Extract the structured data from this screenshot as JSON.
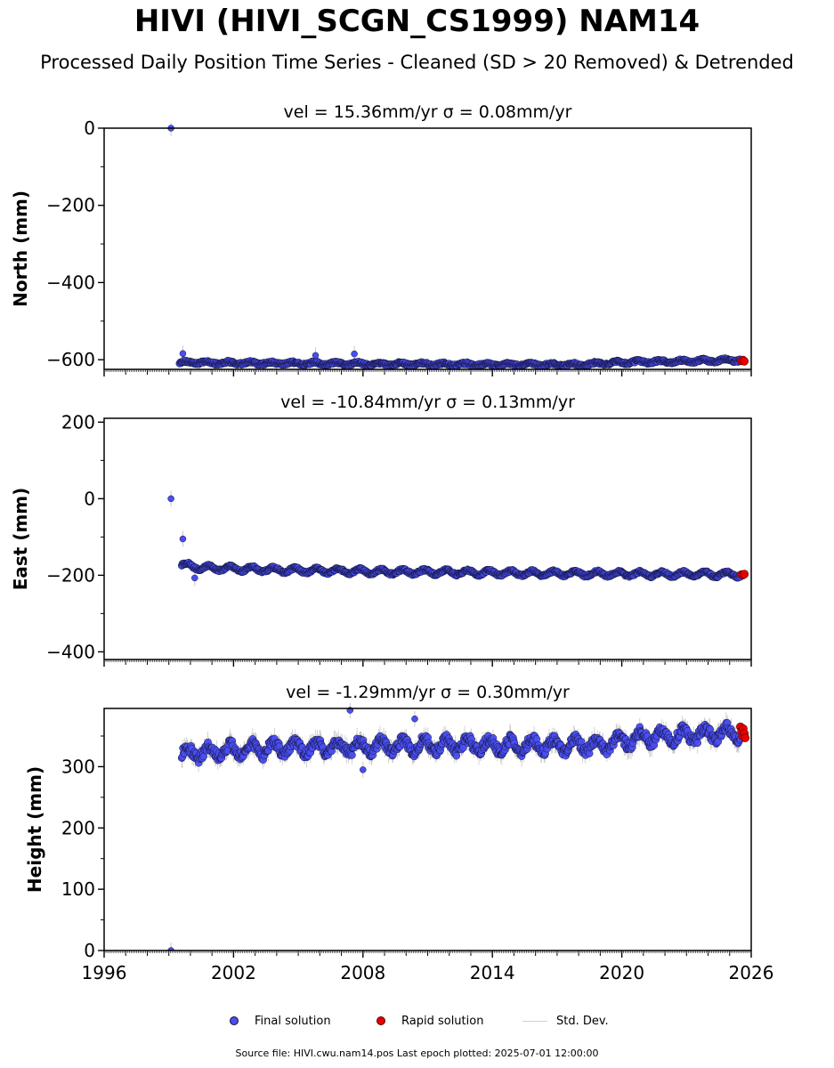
{
  "title": "HIVI (HIVI_SCGN_CS1999) NAM14",
  "subtitle": "Processed Daily Position Time Series - Cleaned (SD > 20 Removed) & Detrended",
  "legend": {
    "final_label": "Final solution",
    "rapid_label": "Rapid solution",
    "std_label": "Std. Dev."
  },
  "footer": "Source file: HIVI.cwu.nam14.pos  Last epoch plotted: 2025-07-01 12:00:00",
  "colors": {
    "final": "#4a4ef0",
    "final_edge": "#111133",
    "rapid": "#e60000",
    "std": "#c8c8c8"
  },
  "chart_data": [
    {
      "type": "scatter",
      "id": "north",
      "title": "vel = 15.36mm/yr   σ = 0.08mm/yr",
      "ylabel": "North (mm)",
      "xlim": [
        1996,
        2026
      ],
      "ylim": [
        -625,
        0
      ],
      "yticks": [
        0,
        -200,
        -400,
        -600
      ],
      "y_minor_step": 100,
      "start": 1999.5,
      "end": 2025.5,
      "trend": [
        [
          1999.5,
          -607
        ],
        [
          2006,
          -610
        ],
        [
          2012,
          -612
        ],
        [
          2018,
          -613
        ],
        [
          2020,
          -607
        ],
        [
          2025.5,
          -601
        ]
      ],
      "amp": 3,
      "noise": 3,
      "std": 4,
      "outliers": [
        [
          1999.1,
          0
        ],
        [
          1999.65,
          -584
        ],
        [
          2005.8,
          -589
        ],
        [
          2007.6,
          -585
        ]
      ],
      "rapid": [
        [
          2025.55,
          -603
        ],
        [
          2025.62,
          -601
        ],
        [
          2025.68,
          -604
        ]
      ]
    },
    {
      "type": "scatter",
      "id": "east",
      "title": "vel = -10.84mm/yr   σ = 0.13mm/yr",
      "ylabel": "East (mm)",
      "xlim": [
        1996,
        2026
      ],
      "ylim": [
        -420,
        210
      ],
      "yticks": [
        200,
        0,
        -200,
        -400
      ],
      "y_minor_step": 100,
      "start": 1999.6,
      "end": 2025.5,
      "trend": [
        [
          1999.6,
          -172
        ],
        [
          2000.5,
          -180
        ],
        [
          2004,
          -186
        ],
        [
          2008,
          -190
        ],
        [
          2012,
          -192
        ],
        [
          2016,
          -195
        ],
        [
          2025.5,
          -198
        ]
      ],
      "amp": 6,
      "noise": 3,
      "std": 4,
      "outliers": [
        [
          1999.1,
          0
        ],
        [
          1999.65,
          -105
        ],
        [
          2000.2,
          -207
        ]
      ],
      "rapid": [
        [
          2025.55,
          -198
        ],
        [
          2025.62,
          -199
        ],
        [
          2025.68,
          -197
        ]
      ]
    },
    {
      "type": "scatter",
      "id": "height",
      "xlabel_ticks": [
        "1996",
        "2002",
        "2008",
        "2014",
        "2020",
        "2026"
      ],
      "title": "vel = -1.29mm/yr   σ = 0.30mm/yr",
      "ylabel": "Height (mm)",
      "xlim": [
        1996,
        2026
      ],
      "ylim": [
        0,
        395
      ],
      "yticks": [
        0,
        100,
        200,
        300
      ],
      "y_minor_step": 50,
      "start": 1999.6,
      "end": 2025.5,
      "trend": [
        [
          1999.6,
          322
        ],
        [
          2004,
          330
        ],
        [
          2012,
          335
        ],
        [
          2019,
          335
        ],
        [
          2021,
          348
        ],
        [
          2025.5,
          355
        ]
      ],
      "amp": 10,
      "noise": 8,
      "std": 12,
      "outliers": [
        [
          1999.1,
          0
        ],
        [
          2007.4,
          392
        ],
        [
          2008,
          295
        ],
        [
          2010.4,
          378
        ]
      ],
      "rapid": [
        [
          2025.5,
          365
        ],
        [
          2025.55,
          358
        ],
        [
          2025.6,
          350
        ],
        [
          2025.63,
          362
        ],
        [
          2025.68,
          354
        ],
        [
          2025.72,
          347
        ]
      ]
    }
  ]
}
